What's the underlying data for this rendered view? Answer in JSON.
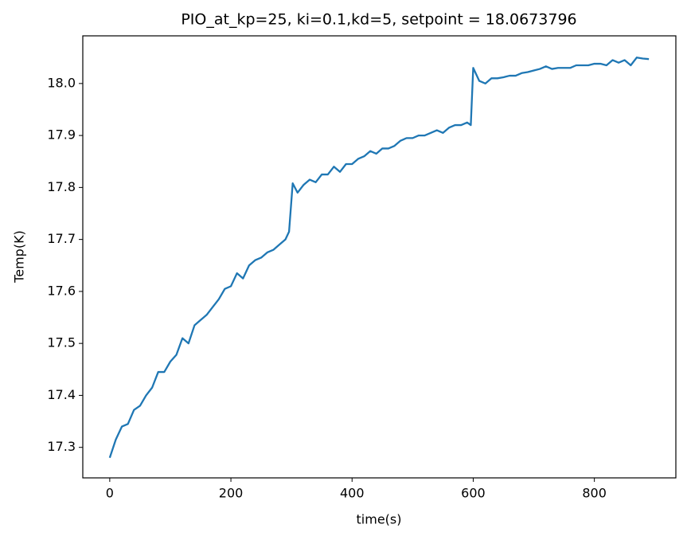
{
  "chart_data": {
    "type": "line",
    "title": "PIO_at_kp=25, ki=0.1,kd=5, setpoint = 18.0673796",
    "x_label": "time(s)",
    "y_label": "Temp(K)",
    "x": [
      0,
      10,
      20,
      30,
      40,
      50,
      60,
      70,
      80,
      90,
      100,
      110,
      120,
      130,
      140,
      150,
      160,
      170,
      180,
      190,
      200,
      210,
      220,
      230,
      240,
      250,
      260,
      270,
      280,
      290,
      296,
      302,
      310,
      320,
      330,
      340,
      350,
      360,
      370,
      380,
      390,
      400,
      410,
      420,
      430,
      440,
      450,
      460,
      470,
      480,
      490,
      500,
      510,
      520,
      530,
      540,
      550,
      560,
      570,
      580,
      590,
      596,
      600,
      610,
      620,
      630,
      640,
      650,
      660,
      670,
      680,
      690,
      700,
      710,
      720,
      730,
      740,
      750,
      760,
      770,
      780,
      790,
      800,
      810,
      820,
      830,
      840,
      850,
      860,
      870,
      880,
      890
    ],
    "series": [
      {
        "name": "Temp",
        "color": "#1f77b4",
        "values": [
          17.28,
          17.315,
          17.34,
          17.345,
          17.372,
          17.38,
          17.4,
          17.415,
          17.445,
          17.445,
          17.465,
          17.478,
          17.51,
          17.5,
          17.535,
          17.545,
          17.555,
          17.57,
          17.585,
          17.605,
          17.61,
          17.635,
          17.625,
          17.65,
          17.66,
          17.665,
          17.675,
          17.68,
          17.69,
          17.7,
          17.715,
          17.808,
          17.79,
          17.805,
          17.815,
          17.81,
          17.825,
          17.825,
          17.84,
          17.83,
          17.845,
          17.845,
          17.855,
          17.86,
          17.87,
          17.865,
          17.875,
          17.875,
          17.88,
          17.89,
          17.895,
          17.895,
          17.9,
          17.9,
          17.905,
          17.91,
          17.905,
          17.915,
          17.92,
          17.92,
          17.925,
          17.92,
          18.03,
          18.005,
          18.0,
          18.01,
          18.01,
          18.012,
          18.015,
          18.015,
          18.02,
          18.022,
          18.025,
          18.028,
          18.033,
          18.028,
          18.03,
          18.03,
          18.03,
          18.035,
          18.035,
          18.035,
          18.038,
          18.038,
          18.035,
          18.045,
          18.04,
          18.045,
          18.035,
          18.05,
          18.048,
          18.047
        ]
      }
    ],
    "xlim": [
      -44.5,
      934.5
    ],
    "ylim": [
      17.2413,
      18.0917
    ],
    "xticks": [
      0,
      200,
      400,
      600,
      800
    ],
    "yticks": [
      17.3,
      17.4,
      17.5,
      17.6,
      17.7,
      17.8,
      17.9,
      {
        "value": 18,
        "label": "18.0"
      }
    ],
    "grid": false
  }
}
